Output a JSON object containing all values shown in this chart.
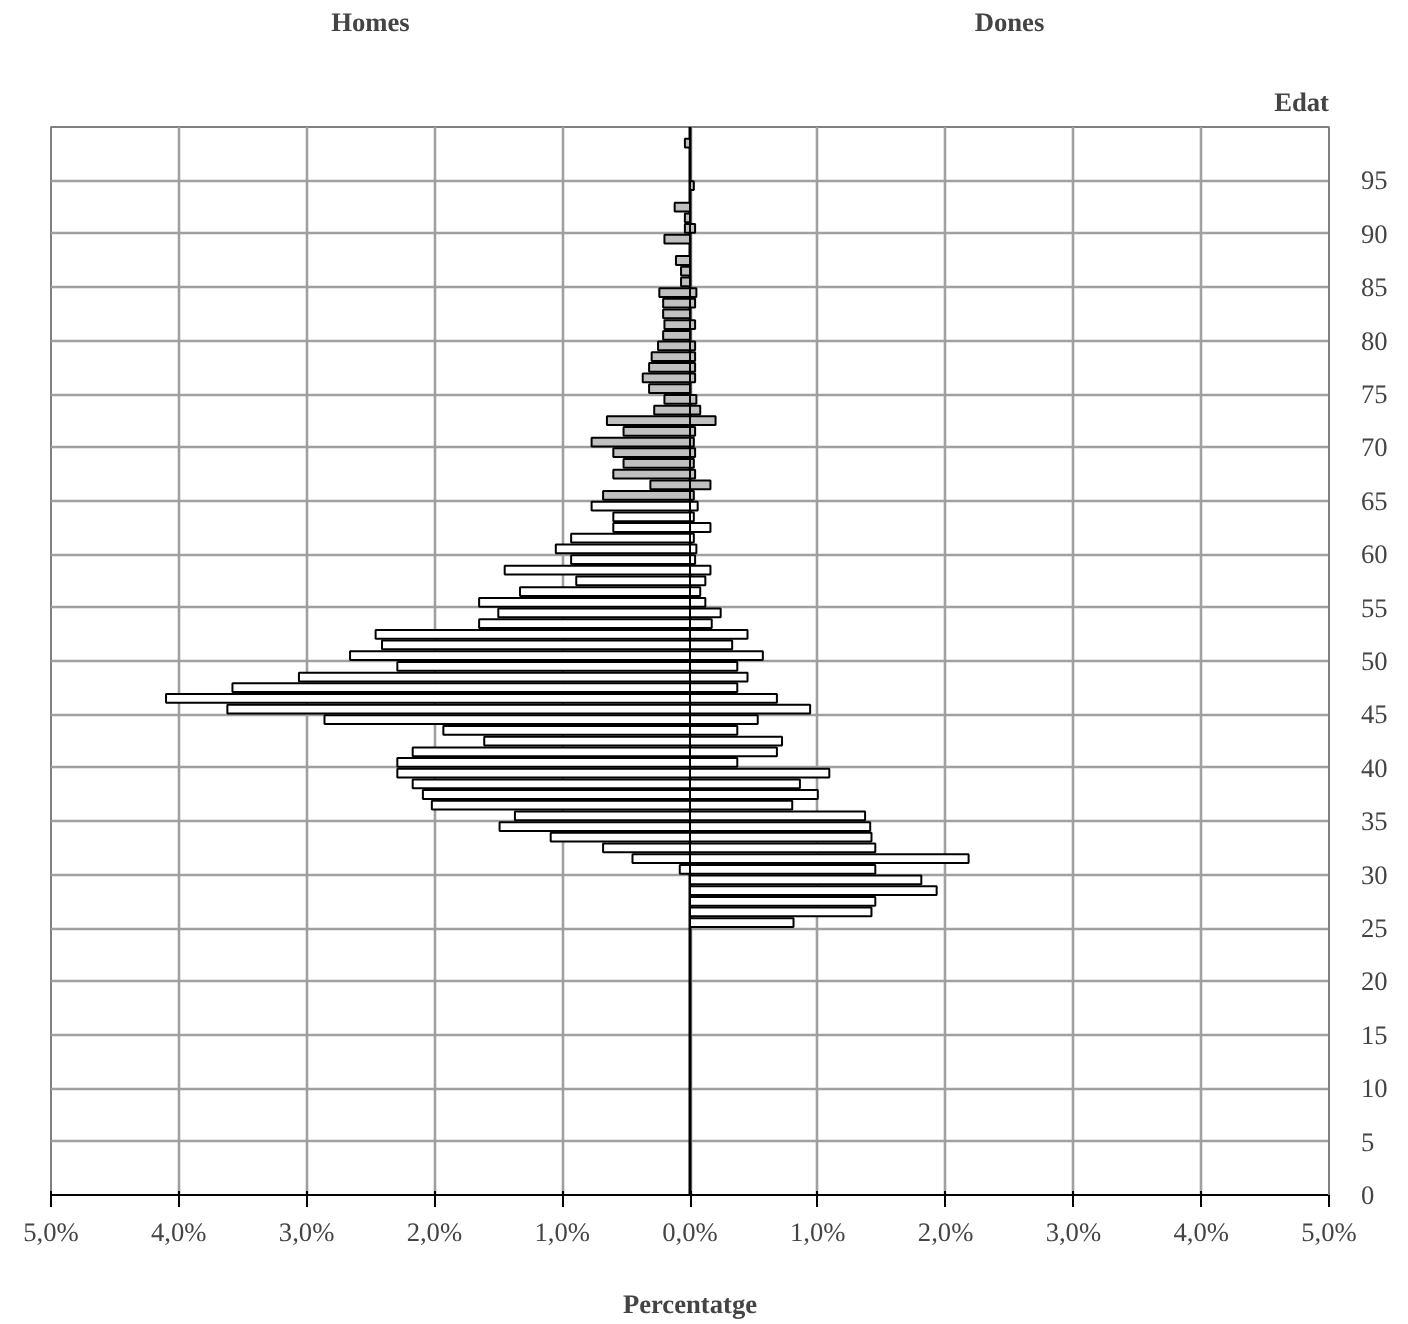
{
  "chart_data": {
    "type": "bar",
    "orientation": "horizontal",
    "xlabel": "Percentatge",
    "ylabel": "Edat",
    "grid": true,
    "annotations": [
      "Homes",
      "Dones"
    ],
    "categories": [
      null,
      null,
      null,
      null,
      "95",
      null,
      null,
      null,
      null,
      "90",
      null,
      null,
      null,
      null,
      "85",
      null,
      null,
      null,
      null,
      "80",
      null,
      null,
      null,
      null,
      "75",
      null,
      null,
      null,
      null,
      "70",
      null,
      null,
      null,
      null,
      "65",
      null,
      null,
      null,
      null,
      "60",
      null,
      null,
      null,
      null,
      "55",
      null,
      null,
      null,
      null,
      "50",
      null,
      null,
      null,
      null,
      "45",
      null,
      null,
      null,
      null,
      "40",
      null,
      null,
      null,
      null,
      "35",
      null,
      null,
      null,
      null,
      "30",
      null,
      null,
      null,
      null,
      "25",
      null,
      null,
      null,
      null,
      "20",
      null,
      null,
      null,
      null,
      "15",
      null,
      null,
      null,
      null,
      "10",
      null,
      null,
      null,
      null,
      "5",
      null,
      null,
      null,
      null,
      "0"
    ],
    "series": [
      {
        "values": [
          null,
          -0.04,
          null,
          null,
          null,
          null,
          null,
          -0.12,
          -0.04,
          -0.04,
          -0.2,
          null,
          -0.11,
          -0.07,
          -0.07,
          -0.24,
          -0.21,
          -0.21,
          -0.2,
          -0.21,
          -0.25,
          -0.3,
          -0.32,
          -0.37,
          -0.32,
          -0.2,
          -0.28,
          -0.65,
          -0.52,
          -0.77,
          -0.6,
          -0.52,
          -0.6,
          -0.31,
          -0.68,
          -0.77,
          -0.6,
          -0.6,
          -0.93,
          -1.05,
          -0.93,
          -1.45,
          -0.89,
          -1.33,
          -1.65,
          -1.5,
          -1.65,
          -2.46,
          -2.41,
          -2.66,
          -2.29,
          -3.06,
          -3.58,
          -4.1,
          -3.62,
          -2.86,
          -1.93,
          -1.61,
          -2.17,
          -2.29,
          -2.29,
          -2.17,
          -2.09,
          -2.02,
          -1.37,
          -1.49,
          -1.09,
          -0.68,
          -0.45,
          -0.08,
          null,
          null,
          null,
          null,
          null,
          null,
          null,
          null,
          null,
          null,
          null,
          null,
          null,
          null,
          null,
          null,
          null,
          null,
          null,
          null,
          null,
          null,
          null,
          null,
          null,
          null,
          null,
          null,
          null,
          null
        ],
        "colors": [
          "#c0c0c0",
          "#c0c0c0",
          "#c0c0c0",
          "#c0c0c0",
          "#c0c0c0",
          "#c0c0c0",
          "#c0c0c0",
          "#c0c0c0",
          "#c0c0c0",
          "#c0c0c0",
          "#c0c0c0",
          "#c0c0c0",
          "#c0c0c0",
          "#c0c0c0",
          "#c0c0c0",
          "#c0c0c0",
          "#c0c0c0",
          "#c0c0c0",
          "#c0c0c0",
          "#c0c0c0",
          "#c0c0c0",
          "#c0c0c0",
          "#c0c0c0",
          "#c0c0c0",
          "#c0c0c0",
          "#c0c0c0",
          "#c0c0c0",
          "#c0c0c0",
          "#c0c0c0",
          "#c0c0c0",
          "#c0c0c0",
          "#c0c0c0",
          "#c0c0c0",
          "#c0c0c0",
          "#c0c0c0",
          "#ffffff",
          "#ffffff",
          "#ffffff",
          "#ffffff",
          "#ffffff",
          "#ffffff",
          "#ffffff",
          "#ffffff",
          "#ffffff",
          "#ffffff",
          "#ffffff",
          "#ffffff",
          "#ffffff",
          "#ffffff",
          "#ffffff",
          "#ffffff",
          "#ffffff",
          "#ffffff",
          "#ffffff",
          "#ffffff",
          "#ffffff",
          "#ffffff",
          "#ffffff",
          "#ffffff",
          "#ffffff",
          "#ffffff",
          "#ffffff",
          "#ffffff",
          "#ffffff",
          "#ffffff",
          "#ffffff",
          "#ffffff",
          "#ffffff",
          "#ffffff",
          "#ffffff",
          "#ffffff",
          "#ffffff",
          "#ffffff",
          "#ffffff",
          "#ffffff",
          "#ffffff",
          "#ffffff",
          "#ffffff",
          "#ffffff",
          "#ffffff",
          "#ffffff",
          "#ffffff",
          "#ffffff",
          "#ffffff",
          "#ffffff",
          "#ffffff",
          "#ffffff",
          "#ffffff",
          "#ffffff",
          "#ffffff",
          "#ffffff",
          "#ffffff",
          "#ffffff",
          "#ffffff",
          "#ffffff",
          "#ffffff",
          "#ffffff",
          "#ffffff",
          "#ffffff",
          "#ffffff"
        ]
      },
      {
        "values": [
          null,
          null,
          null,
          null,
          null,
          0.03,
          null,
          null,
          null,
          0.04,
          null,
          null,
          null,
          null,
          null,
          0.05,
          0.04,
          null,
          0.04,
          null,
          0.04,
          0.04,
          0.04,
          0.04,
          null,
          0.05,
          0.08,
          0.2,
          0.04,
          0.03,
          0.04,
          0.03,
          0.04,
          0.16,
          0.03,
          0.06,
          0.03,
          0.16,
          0.03,
          0.05,
          0.04,
          0.16,
          0.12,
          0.08,
          0.12,
          0.24,
          0.17,
          0.45,
          0.33,
          0.57,
          0.37,
          0.45,
          0.37,
          0.68,
          0.94,
          0.53,
          0.37,
          0.72,
          0.68,
          0.37,
          1.09,
          0.86,
          1.0,
          0.8,
          1.37,
          1.41,
          1.42,
          1.45,
          2.18,
          1.45,
          1.81,
          1.93,
          1.45,
          1.42,
          0.81,
          null,
          null,
          null,
          null,
          null,
          null,
          null,
          null,
          null,
          null,
          null,
          null,
          null,
          null,
          null,
          null,
          null,
          null,
          null,
          null,
          null,
          null,
          null,
          null,
          null
        ],
        "colors": [
          "#c0c0c0",
          "#c0c0c0",
          "#c0c0c0",
          "#c0c0c0",
          "#c0c0c0",
          "#c0c0c0",
          "#c0c0c0",
          "#c0c0c0",
          "#c0c0c0",
          "#c0c0c0",
          "#c0c0c0",
          "#c0c0c0",
          "#c0c0c0",
          "#c0c0c0",
          "#c0c0c0",
          "#c0c0c0",
          "#c0c0c0",
          "#c0c0c0",
          "#c0c0c0",
          "#c0c0c0",
          "#c0c0c0",
          "#c0c0c0",
          "#c0c0c0",
          "#c0c0c0",
          "#c0c0c0",
          "#c0c0c0",
          "#c0c0c0",
          "#c0c0c0",
          "#c0c0c0",
          "#c0c0c0",
          "#c0c0c0",
          "#c0c0c0",
          "#c0c0c0",
          "#c0c0c0",
          "#c0c0c0",
          "#ffffff",
          "#ffffff",
          "#ffffff",
          "#ffffff",
          "#ffffff",
          "#ffffff",
          "#ffffff",
          "#ffffff",
          "#ffffff",
          "#ffffff",
          "#ffffff",
          "#ffffff",
          "#ffffff",
          "#ffffff",
          "#ffffff",
          "#ffffff",
          "#ffffff",
          "#ffffff",
          "#ffffff",
          "#ffffff",
          "#ffffff",
          "#ffffff",
          "#ffffff",
          "#ffffff",
          "#ffffff",
          "#ffffff",
          "#ffffff",
          "#ffffff",
          "#ffffff",
          "#ffffff",
          "#ffffff",
          "#ffffff",
          "#ffffff",
          "#ffffff",
          "#ffffff",
          "#ffffff",
          "#ffffff",
          "#ffffff",
          "#ffffff",
          "#ffffff",
          "#ffffff",
          "#ffffff",
          "#ffffff",
          "#ffffff",
          "#ffffff",
          "#ffffff",
          "#ffffff",
          "#ffffff",
          "#ffffff",
          "#ffffff",
          "#ffffff",
          "#ffffff",
          "#ffffff",
          "#ffffff",
          "#ffffff",
          "#ffffff",
          "#ffffff",
          "#ffffff",
          "#ffffff",
          "#ffffff",
          "#ffffff",
          "#ffffff",
          "#ffffff",
          "#ffffff",
          "#ffffff"
        ]
      }
    ],
    "xlim": [
      -5,
      5
    ],
    "xticks": [
      {
        "value": -5,
        "label": "5,0%"
      },
      {
        "value": -4,
        "label": "4,0%"
      },
      {
        "value": -3,
        "label": "3,0%"
      },
      {
        "value": -2,
        "label": "2,0%"
      },
      {
        "value": -1,
        "label": "1,0%"
      },
      {
        "value": 0,
        "label": "0,0%"
      },
      {
        "value": 1,
        "label": "1,0%"
      },
      {
        "value": 2,
        "label": "2,0%"
      },
      {
        "value": 3,
        "label": "3,0%"
      },
      {
        "value": 4,
        "label": "4,0%"
      },
      {
        "value": 5,
        "label": "5,0%"
      }
    ],
    "ref_lines": [
      {
        "axis": "x",
        "value": 0,
        "color": "#000000"
      }
    ]
  }
}
